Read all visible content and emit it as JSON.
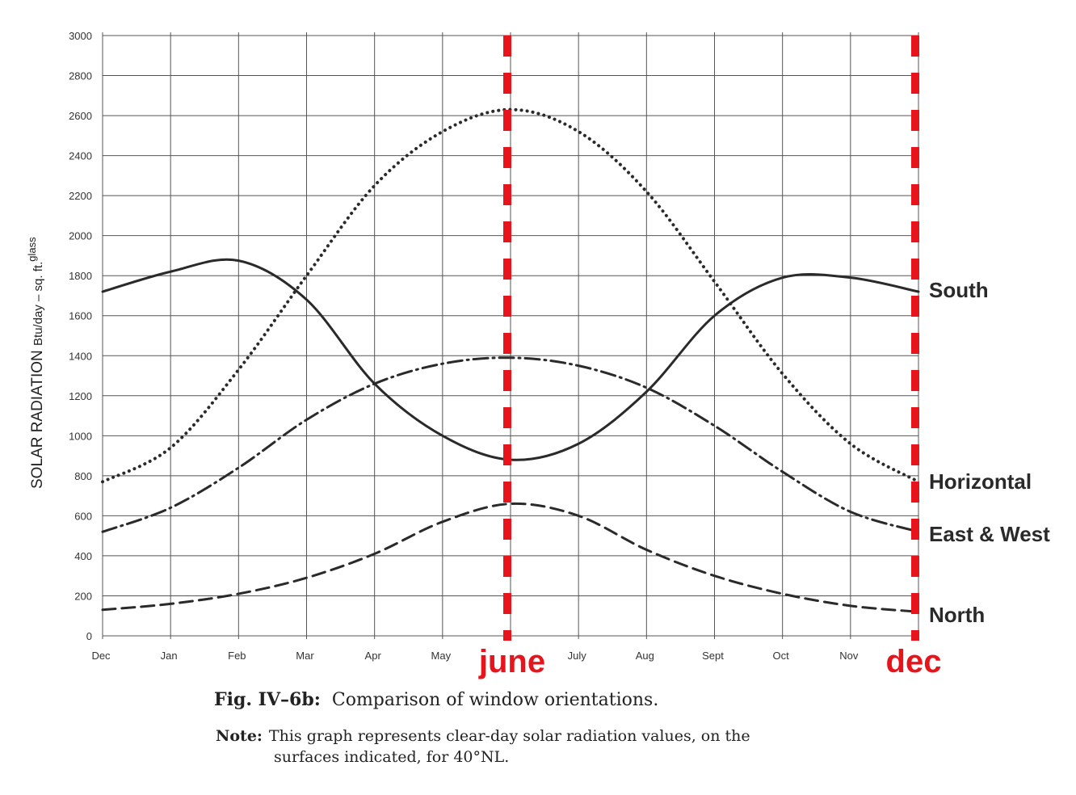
{
  "chart_data": {
    "type": "line",
    "title": "",
    "ylabel": "SOLAR RADIATION",
    "ylabel_units": "Btu/day – sq. ft.",
    "ylabel_units_subscript": "glass",
    "xlabel": "",
    "ylim": [
      0,
      3000
    ],
    "yticks": [
      0,
      200,
      400,
      600,
      800,
      1000,
      1200,
      1400,
      1600,
      1800,
      2000,
      2200,
      2400,
      2600,
      2800,
      3000
    ],
    "categories": [
      "Dec",
      "Jan",
      "Feb",
      "Mar",
      "Apr",
      "May",
      "June",
      "July",
      "Aug",
      "Sept",
      "Oct",
      "Nov",
      "Dec"
    ],
    "grid": true,
    "series": [
      {
        "name": "South",
        "style": "solid",
        "values": [
          1720,
          1820,
          1875,
          1680,
          1260,
          1000,
          880,
          960,
          1220,
          1600,
          1790,
          1790,
          1720
        ]
      },
      {
        "name": "Horizontal",
        "style": "dotted",
        "values": [
          770,
          940,
          1330,
          1800,
          2250,
          2520,
          2630,
          2520,
          2220,
          1770,
          1310,
          960,
          770
        ]
      },
      {
        "name": "East & West",
        "style": "dash-dot",
        "values": [
          520,
          640,
          840,
          1080,
          1260,
          1360,
          1390,
          1350,
          1240,
          1050,
          820,
          620,
          520
        ]
      },
      {
        "name": "North",
        "style": "dashed",
        "values": [
          130,
          160,
          210,
          290,
          410,
          570,
          660,
          600,
          430,
          300,
          210,
          150,
          120
        ]
      }
    ],
    "annotations": [
      {
        "text": "june",
        "category_index": 6,
        "color": "#e8141b"
      },
      {
        "text": "dec",
        "category_index": 12,
        "color": "#e8141b"
      }
    ]
  },
  "caption": {
    "fig_label": "Fig. IV–6b:",
    "fig_text": "Comparison of window orientations.",
    "note_label": "Note:",
    "note_line1": "This graph represents clear-day solar radiation values, on the",
    "note_line2": "surfaces indicated, for 40°NL."
  }
}
